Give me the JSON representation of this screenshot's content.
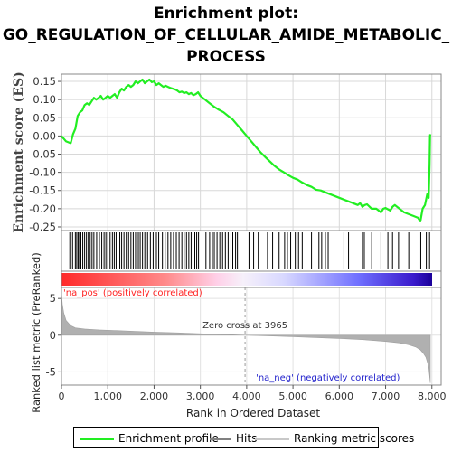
{
  "title_lines": [
    "Enrichment plot:",
    "GO_REGULATION_OF_CELLULAR_AMIDE_METABOLIC_",
    "PROCESS"
  ],
  "colors": {
    "enrichment_line": "#22ee22",
    "hits": "#000000",
    "metric_fill": "#b0b0b0",
    "pos_label": "#ff2222",
    "neg_label": "#2222cc",
    "zero_line": "#000000"
  },
  "chart_data": [
    {
      "type": "line",
      "name": "enrichment-profile",
      "ylabel": "Enrichment score (ES)",
      "ylim": [
        -0.26,
        0.17
      ],
      "xlim": [
        0,
        8200
      ],
      "yticks": [
        0.15,
        0.1,
        0.05,
        0.0,
        -0.05,
        -0.1,
        -0.15,
        -0.2,
        -0.25
      ],
      "ytick_labels": [
        "0.15",
        "0.10",
        "0.05",
        "0.00",
        "-0.05",
        "-0.10",
        "-0.15",
        "-0.20",
        "-0.25"
      ],
      "grid": true,
      "x": [
        0,
        100,
        200,
        250,
        300,
        350,
        400,
        450,
        500,
        550,
        600,
        650,
        700,
        750,
        800,
        850,
        900,
        950,
        1000,
        1050,
        1100,
        1150,
        1200,
        1250,
        1300,
        1350,
        1400,
        1450,
        1500,
        1550,
        1600,
        1650,
        1700,
        1750,
        1800,
        1850,
        1900,
        1950,
        2000,
        2050,
        2100,
        2150,
        2200,
        2250,
        2300,
        2350,
        2400,
        2450,
        2500,
        2550,
        2600,
        2650,
        2700,
        2750,
        2800,
        2850,
        2900,
        2950,
        3000,
        3100,
        3200,
        3300,
        3400,
        3500,
        3600,
        3700,
        3800,
        3900,
        4000,
        4100,
        4200,
        4300,
        4400,
        4500,
        4600,
        4700,
        4800,
        4900,
        5000,
        5100,
        5200,
        5300,
        5400,
        5500,
        5600,
        5700,
        5800,
        5900,
        6000,
        6100,
        6200,
        6300,
        6400,
        6450,
        6500,
        6550,
        6600,
        6700,
        6800,
        6900,
        6950,
        7000,
        7100,
        7150,
        7200,
        7300,
        7400,
        7500,
        7600,
        7700,
        7750,
        7800,
        7850,
        7900,
        7930,
        7950,
        7960,
        7965
      ],
      "y": [
        0.0,
        -0.015,
        -0.02,
        0.005,
        0.02,
        0.055,
        0.065,
        0.07,
        0.085,
        0.09,
        0.085,
        0.095,
        0.105,
        0.1,
        0.105,
        0.11,
        0.1,
        0.105,
        0.11,
        0.105,
        0.11,
        0.115,
        0.105,
        0.12,
        0.13,
        0.125,
        0.135,
        0.14,
        0.135,
        0.14,
        0.15,
        0.145,
        0.15,
        0.155,
        0.145,
        0.15,
        0.155,
        0.148,
        0.15,
        0.14,
        0.145,
        0.14,
        0.135,
        0.138,
        0.135,
        0.132,
        0.13,
        0.128,
        0.125,
        0.12,
        0.122,
        0.118,
        0.12,
        0.115,
        0.118,
        0.112,
        0.115,
        0.12,
        0.11,
        0.1,
        0.09,
        0.08,
        0.072,
        0.065,
        0.055,
        0.045,
        0.03,
        0.015,
        0.0,
        -0.015,
        -0.03,
        -0.045,
        -0.058,
        -0.07,
        -0.082,
        -0.092,
        -0.1,
        -0.108,
        -0.115,
        -0.12,
        -0.128,
        -0.135,
        -0.14,
        -0.148,
        -0.15,
        -0.155,
        -0.16,
        -0.165,
        -0.17,
        -0.175,
        -0.18,
        -0.185,
        -0.19,
        -0.185,
        -0.195,
        -0.19,
        -0.188,
        -0.2,
        -0.2,
        -0.21,
        -0.2,
        -0.198,
        -0.205,
        -0.195,
        -0.19,
        -0.2,
        -0.21,
        -0.215,
        -0.22,
        -0.225,
        -0.235,
        -0.2,
        -0.19,
        -0.16,
        -0.17,
        -0.08,
        -0.0,
        0.005
      ]
    },
    {
      "type": "bar",
      "name": "hits",
      "x": [
        180,
        240,
        300,
        330,
        360,
        390,
        420,
        460,
        500,
        540,
        580,
        620,
        660,
        700,
        760,
        820,
        870,
        920,
        960,
        1000,
        1050,
        1100,
        1140,
        1180,
        1220,
        1260,
        1300,
        1350,
        1400,
        1450,
        1500,
        1550,
        1600,
        1660,
        1700,
        1750,
        1800,
        1860,
        1920,
        1980,
        2050,
        2100,
        2180,
        2240,
        2300,
        2360,
        2420,
        2480,
        2540,
        2600,
        2650,
        2700,
        2750,
        2800,
        2840,
        2880,
        2920,
        2960,
        3120,
        3200,
        3260,
        3300,
        3360,
        3420,
        3480,
        3540,
        3600,
        3660,
        3700,
        3760,
        3800,
        4050,
        4150,
        4250,
        4450,
        4560,
        4700,
        4820,
        4880,
        4950,
        5050,
        5120,
        5200,
        5400,
        5560,
        5620,
        5700,
        5760,
        6100,
        6200,
        6500,
        6540,
        6700,
        6900,
        7050,
        7150,
        7280,
        7500,
        7760,
        7880,
        7950
      ]
    },
    {
      "type": "area",
      "name": "ranked-list-metric",
      "xlabel": "Rank in Ordered Dataset",
      "ylabel": "Ranked list metric (PreRanked)",
      "ylim": [
        -6.8,
        6.5
      ],
      "xlim": [
        0,
        8200
      ],
      "xticks": [
        0,
        1000,
        2000,
        3000,
        4000,
        5000,
        6000,
        7000,
        8000
      ],
      "xtick_labels": [
        "0",
        "1,000",
        "2,000",
        "3,000",
        "4,000",
        "5,000",
        "6,000",
        "7,000",
        "8,000"
      ],
      "yticks": [
        5,
        0,
        -5
      ],
      "ytick_labels": [
        "5",
        "0",
        "-5"
      ],
      "x": [
        0,
        20,
        50,
        100,
        200,
        300,
        500,
        800,
        1200,
        1600,
        2000,
        2500,
        3000,
        3500,
        3965,
        4500,
        5000,
        5500,
        6000,
        6500,
        7000,
        7300,
        7500,
        7650,
        7750,
        7820,
        7870,
        7900,
        7930,
        7950,
        7965
      ],
      "y": [
        5.8,
        4.2,
        3.0,
        2.0,
        1.3,
        1.0,
        0.85,
        0.72,
        0.62,
        0.52,
        0.42,
        0.32,
        0.2,
        0.1,
        0.0,
        -0.1,
        -0.2,
        -0.32,
        -0.45,
        -0.6,
        -0.85,
        -1.05,
        -1.3,
        -1.6,
        -2.0,
        -2.5,
        -3.0,
        -3.6,
        -4.3,
        -5.5,
        -6.5
      ],
      "zero_cross_label": "Zero cross at 3965",
      "zero_cross_x": 3965,
      "pos_label": "'na_pos' (positively correlated)",
      "neg_label": "'na_neg' (negatively correlated)"
    }
  ],
  "legend": {
    "placement": "bottom",
    "items": [
      {
        "label": "Enrichment profile",
        "color": "#22ee22"
      },
      {
        "label": "Hits",
        "color": "#808080"
      },
      {
        "label": "Ranking metric scores",
        "color": "#c0c0c0"
      }
    ]
  }
}
